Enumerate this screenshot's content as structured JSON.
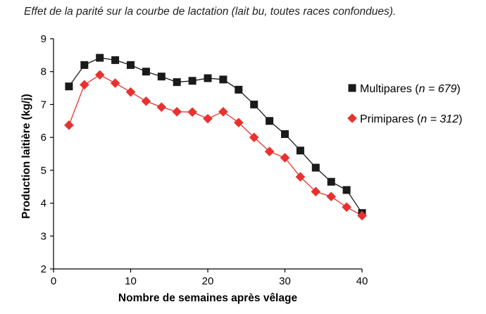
{
  "chart_data": {
    "type": "line",
    "title": "Effet de la parité sur la courbe de lactation (lait bu, toutes races confondues).",
    "xlabel": "Nombre de semaines après vêlage",
    "ylabel": "Production laitière (kg/j)",
    "xlim": [
      0,
      40
    ],
    "ylim": [
      2,
      9
    ],
    "xticks": [
      0,
      10,
      20,
      30,
      40
    ],
    "yticks": [
      2,
      3,
      4,
      5,
      6,
      7,
      8,
      9
    ],
    "grid": false,
    "legend_position": "right",
    "x": [
      2,
      4,
      6,
      8,
      10,
      12,
      14,
      16,
      18,
      20,
      22,
      24,
      26,
      28,
      30,
      32,
      34,
      36,
      38,
      40
    ],
    "series": [
      {
        "name": "Multipares",
        "n_label": "n = 679",
        "marker": "square",
        "color": "#1a1a1a",
        "values": [
          7.55,
          8.2,
          8.42,
          8.35,
          8.2,
          8.0,
          7.85,
          7.68,
          7.72,
          7.8,
          7.76,
          7.45,
          7.0,
          6.5,
          6.1,
          5.6,
          5.08,
          4.65,
          4.4,
          3.7
        ]
      },
      {
        "name": "Primipares",
        "n_label": "n = 312",
        "marker": "diamond",
        "color": "#e8322f",
        "values": [
          6.37,
          7.6,
          7.9,
          7.65,
          7.38,
          7.1,
          6.92,
          6.78,
          6.77,
          6.57,
          6.78,
          6.45,
          6.0,
          5.57,
          5.38,
          4.8,
          4.35,
          4.2,
          3.88,
          3.62
        ]
      }
    ]
  }
}
